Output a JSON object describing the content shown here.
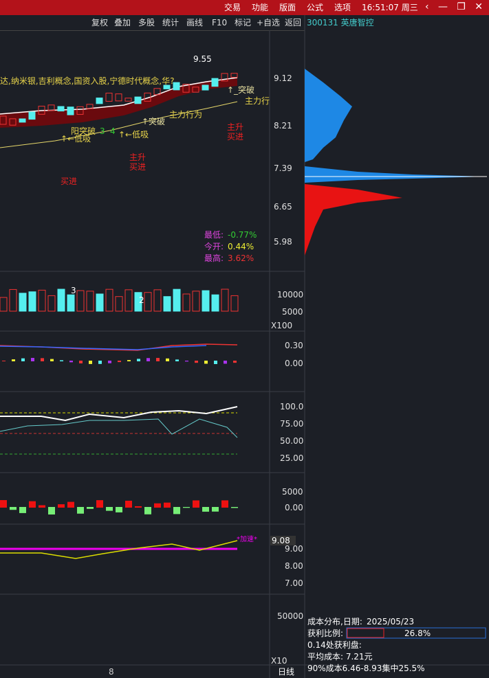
{
  "menu": {
    "items": [
      "交易",
      "功能",
      "版面",
      "公式",
      "选项"
    ],
    "clock": "16:51:07 周三"
  },
  "toolbar": {
    "items": [
      "复权",
      "叠加",
      "多股",
      "统计",
      "画线",
      "F10",
      "标记",
      "+自选",
      "返回"
    ],
    "stock": "300131 英唐智控"
  },
  "price_panel": {
    "axis": [
      "9.12",
      "8.21",
      "7.39",
      "6.65",
      "5.98"
    ],
    "high_marker": "9.55",
    "concepts": "达,纳米银,吉利概念,国资入股,宁德时代概念,华?",
    "annotations": [
      "↑_突破",
      "主力行",
      "↑突破",
      "主力行为",
      "阳突破",
      "3",
      "4",
      "↑←低吸",
      "↑←低吸",
      "主升买进",
      "主升买进",
      "买进"
    ],
    "stats": [
      {
        "label": "最低:",
        "value": "-0.77%"
      },
      {
        "label": "今开:",
        "value": "0.44%"
      },
      {
        "label": "最高:",
        "value": "3.62%"
      }
    ]
  },
  "volume_panel": {
    "axis": [
      "10000",
      "5000"
    ],
    "unit": "X100",
    "counts": [
      "3",
      "2"
    ]
  },
  "macd_panel": {
    "axis": [
      "0.30",
      "0.00"
    ]
  },
  "kdj_panel": {
    "axis": [
      "100.0",
      "75.00",
      "50.00",
      "25.00"
    ]
  },
  "flow_panel": {
    "axis": [
      "5000",
      "0.00"
    ]
  },
  "line_panel": {
    "current": "9.08",
    "axis": [
      "9.00",
      "8.00",
      "7.00"
    ],
    "tag": "*加速*"
  },
  "bottom_panel": {
    "axis": [
      "50000"
    ],
    "unit": "X10"
  },
  "footer": {
    "date_tick": "8",
    "period": "日线"
  },
  "cost_panel": {
    "title": "成本分布,日期:",
    "date": "2025/05/23",
    "profit_label": "获利比例:",
    "profit_value": "26.8%",
    "lines": [
      "0.14处获利盘:",
      "平均成本: 7.21元",
      "90%成本6.46-8.93集中25.5%"
    ]
  }
}
